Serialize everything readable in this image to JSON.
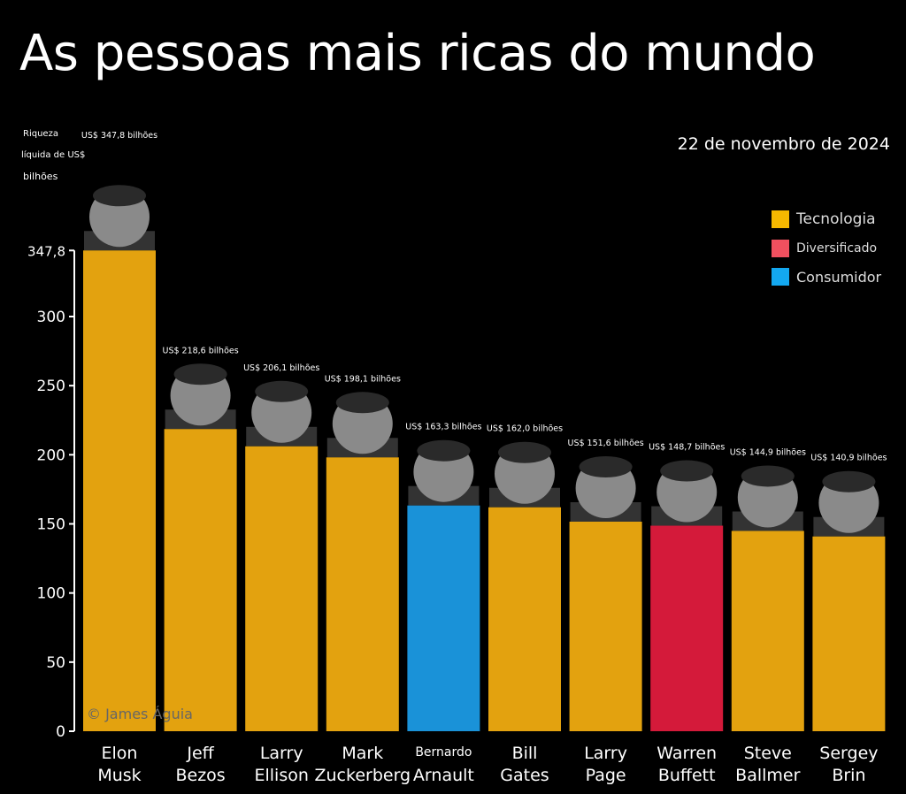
{
  "chart_data": {
    "type": "bar",
    "title": "As pessoas mais ricas do mundo",
    "subtitle": "22 de novembro de 2024",
    "ylabel": [
      "Riqueza",
      "líquida de US$",
      "bilhões"
    ],
    "ylim": [
      0,
      347.8
    ],
    "yticks": [
      "0",
      "50",
      "100",
      "150",
      "200",
      "250",
      "300",
      "347,8"
    ],
    "ytick_values": [
      0,
      50,
      100,
      150,
      200,
      250,
      300,
      347.8
    ],
    "grid": false,
    "legend_position": "top-right",
    "legend": [
      {
        "name": "Tecnologia",
        "color": "#F5B800"
      },
      {
        "name": "Diversificado",
        "color": "#F0505F"
      },
      {
        "name": "Consumidor",
        "color": "#13A8F0"
      }
    ],
    "categories": [
      [
        "Elon",
        "Musk"
      ],
      [
        "Jeff",
        "Bezos"
      ],
      [
        "Larry",
        "Ellison"
      ],
      [
        "Mark",
        "Zuckerberg"
      ],
      [
        "Bernardo",
        "Arnault"
      ],
      [
        "Bill",
        "Gates"
      ],
      [
        "Larry",
        "Page"
      ],
      [
        "Warren",
        "Buffett"
      ],
      [
        "Steve",
        "Ballmer"
      ],
      [
        "Sergey",
        "Brin"
      ]
    ],
    "values": [
      347.8,
      218.6,
      206.1,
      198.1,
      163.3,
      162.0,
      151.6,
      148.7,
      144.9,
      140.9
    ],
    "data_labels": [
      "US$ 347,8 bilhões",
      "US$ 218,6 bilhões",
      "US$ 206,1 bilhões",
      "US$ 198,1 bilhões",
      "US$ 163,3 bilhões",
      "US$ 162,0 bilhões",
      "US$ 151,6 bilhões",
      "US$ 148,7 bilhões",
      "US$ 144,9 bilhões",
      "US$ 140,9 bilhões"
    ],
    "sectors": [
      "Tecnologia",
      "Tecnologia",
      "Tecnologia",
      "Tecnologia",
      "Consumidor",
      "Tecnologia",
      "Tecnologia",
      "Diversificado",
      "Tecnologia",
      "Tecnologia"
    ],
    "bar_colors": {
      "Tecnologia": "#E3A20F",
      "Consumidor": "#1A92D8",
      "Diversificado": "#D41A3A"
    }
  },
  "credit": "© James Águia"
}
